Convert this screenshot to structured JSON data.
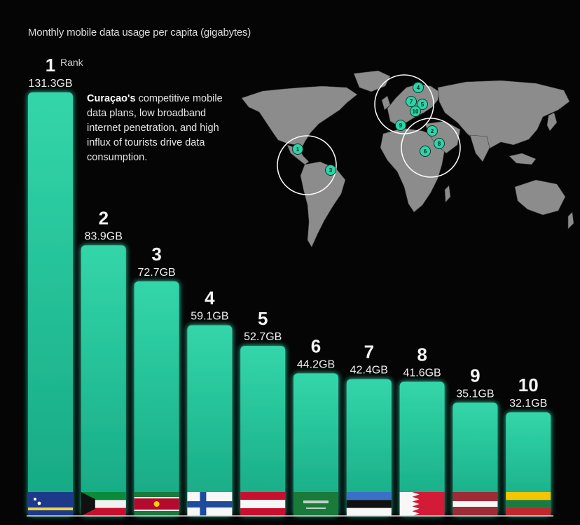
{
  "subtitle": "Monthly mobile data usage per capita (gigabytes)",
  "rank_label": "Rank",
  "callout": {
    "country": "Curaçao's",
    "text": " competitive mobile data plans, low broadband internet penetration, and high influx of tourists drive data consumption."
  },
  "colors": {
    "bar": "#1fbf94",
    "bar_light": "#35d8ab",
    "background": "#050505",
    "map_land": "#8a8a8a",
    "marker": "#2ed3a8"
  },
  "chart_data": {
    "type": "bar",
    "ranks": [
      "1",
      "2",
      "3",
      "4",
      "5",
      "6",
      "7",
      "8",
      "9",
      "10"
    ],
    "values": [
      131.3,
      83.9,
      72.7,
      59.1,
      52.7,
      44.2,
      42.4,
      41.6,
      35.1,
      32.1
    ],
    "value_labels": [
      "131.3GB",
      "83.9GB",
      "72.7GB",
      "59.1GB",
      "52.7GB",
      "44.2GB",
      "42.4GB",
      "41.6GB",
      "35.1GB",
      "32.1GB"
    ],
    "flags": [
      "curacao-flag",
      "kuwait-flag",
      "suriname-flag",
      "finland-flag",
      "austria-flag",
      "saudi-arabia-flag",
      "estonia-flag",
      "bahrain-flag",
      "latvia-flag",
      "lithuania-flag"
    ],
    "ylim": [
      0,
      131.3
    ],
    "grid": false
  },
  "map_markers": [
    "1",
    "2",
    "3",
    "4",
    "5",
    "6",
    "7",
    "8",
    "9",
    "10"
  ]
}
